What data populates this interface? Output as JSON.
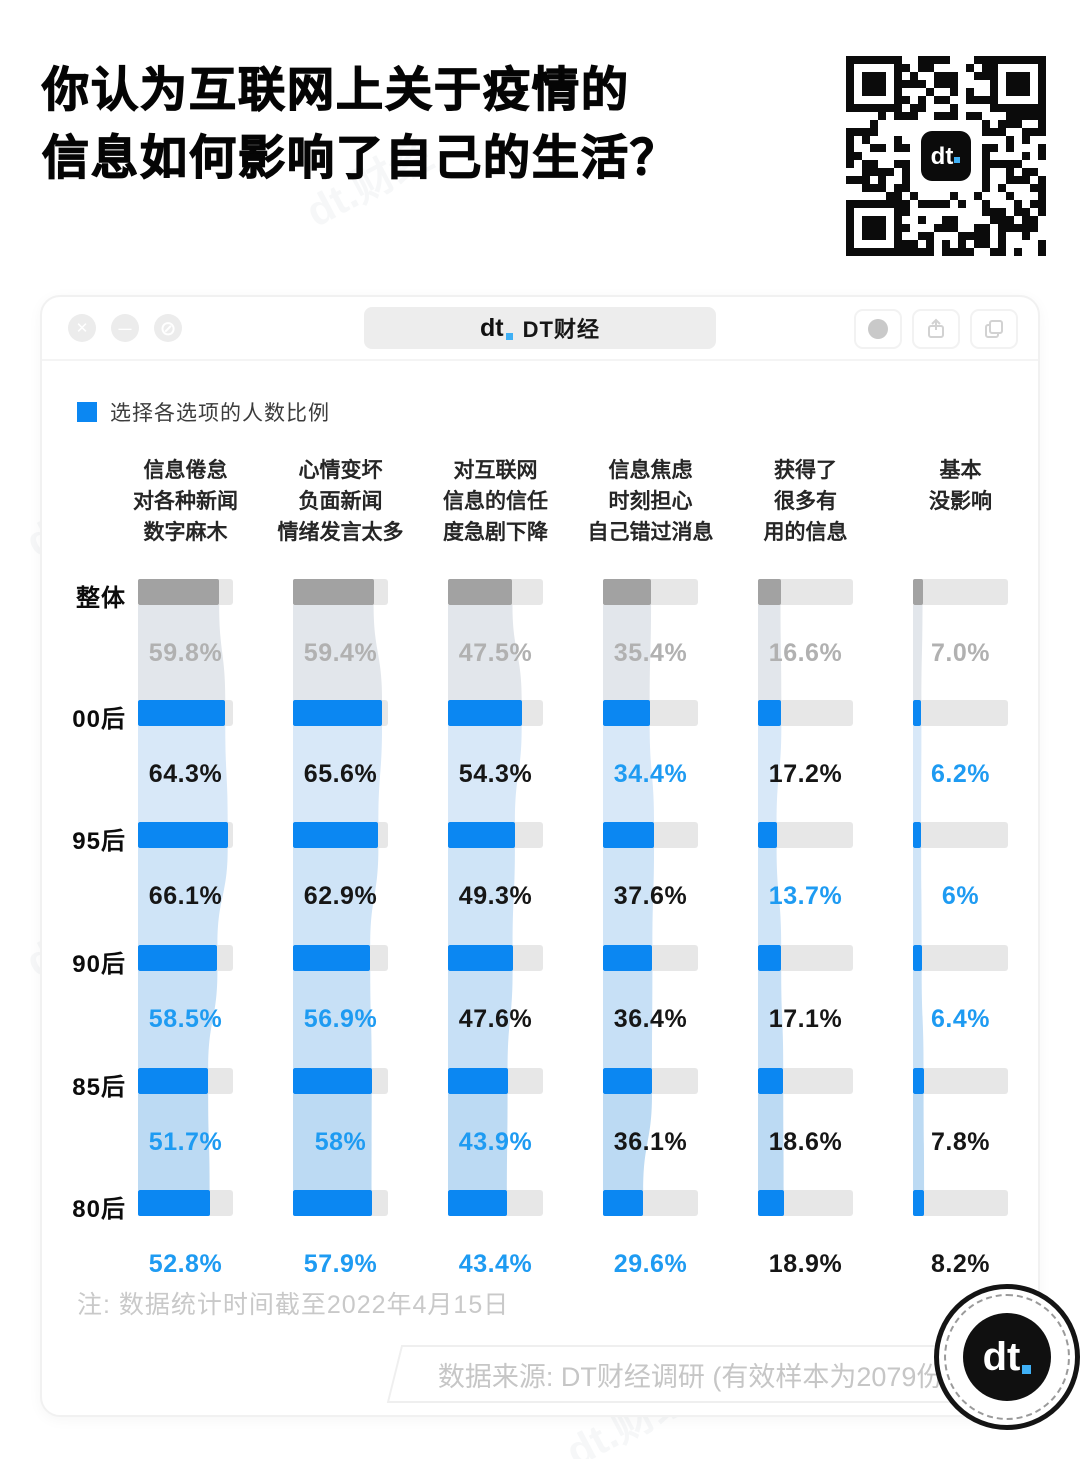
{
  "title": {
    "line1": "你认为互联网上关于疫情的",
    "line2": "信息如何影响了自己的生活？"
  },
  "watermark_text": "dt.财经",
  "qr": {
    "center_logo": "dt"
  },
  "window": {
    "logo_text": "dt",
    "title": "DT财经",
    "controls_left": [
      "close",
      "minimize",
      "block"
    ],
    "controls_right": [
      "record",
      "share",
      "copy"
    ]
  },
  "legend": {
    "label": "选择各选项的人数比例"
  },
  "chart_data": {
    "type": "bar",
    "orientation": "horizontal",
    "unit": "%",
    "axis_max_hint": 70,
    "grid": false,
    "row_labels": [
      "整体",
      "00后",
      "95后",
      "90后",
      "85后",
      "80后"
    ],
    "columns": [
      {
        "header": [
          "信息倦怠",
          "对各种新闻",
          "数字麻木"
        ],
        "values": [
          59.8,
          64.3,
          66.1,
          58.5,
          51.7,
          52.8
        ],
        "labels": [
          "59.8%",
          "64.3%",
          "66.1%",
          "58.5%",
          "51.7%",
          "52.8%"
        ],
        "blue_label": [
          false,
          false,
          false,
          true,
          true,
          true
        ]
      },
      {
        "header": [
          "心情变坏",
          "负面新闻",
          "情绪发言太多"
        ],
        "values": [
          59.4,
          65.6,
          62.9,
          56.9,
          58,
          57.9
        ],
        "labels": [
          "59.4%",
          "65.6%",
          "62.9%",
          "56.9%",
          "58%",
          "57.9%"
        ],
        "blue_label": [
          false,
          false,
          false,
          true,
          true,
          true
        ]
      },
      {
        "header": [
          "对互联网",
          "信息的信任",
          "度急剧下降"
        ],
        "values": [
          47.5,
          54.3,
          49.3,
          47.6,
          43.9,
          43.4
        ],
        "labels": [
          "47.5%",
          "54.3%",
          "49.3%",
          "47.6%",
          "43.9%",
          "43.4%"
        ],
        "blue_label": [
          false,
          false,
          false,
          false,
          true,
          true
        ]
      },
      {
        "header": [
          "信息焦虑",
          "时刻担心",
          "自己错过消息"
        ],
        "values": [
          35.4,
          34.4,
          37.6,
          36.4,
          36.1,
          29.6
        ],
        "labels": [
          "35.4%",
          "34.4%",
          "37.6%",
          "36.4%",
          "36.1%",
          "29.6%"
        ],
        "blue_label": [
          false,
          true,
          false,
          false,
          false,
          true
        ]
      },
      {
        "header": [
          "获得了",
          "很多有",
          "用的信息"
        ],
        "values": [
          16.6,
          17.2,
          13.7,
          17.1,
          18.6,
          18.9
        ],
        "labels": [
          "16.6%",
          "17.2%",
          "13.7%",
          "17.1%",
          "18.6%",
          "18.9%"
        ],
        "blue_label": [
          false,
          false,
          true,
          false,
          false,
          false
        ]
      },
      {
        "header": [
          "基本",
          "没影响"
        ],
        "values": [
          7.0,
          6.2,
          6,
          6.4,
          7.8,
          8.2
        ],
        "labels": [
          "7.0%",
          "6.2%",
          "6%",
          "6.4%",
          "7.8%",
          "8.2%"
        ],
        "blue_label": [
          false,
          true,
          true,
          true,
          false,
          false
        ]
      }
    ],
    "colors": {
      "bar_blue": "#0b87f2",
      "bar_gray": "#a2a2a2",
      "track": "#e7e7e7",
      "label_blue": "#1e9bf2",
      "label_dark": "#161616",
      "label_gray": "#b1b1b1",
      "flows": [
        "#e2e6eb",
        "#d8e8f8",
        "#cfe4f7",
        "#c7e0f6",
        "#bcdaf3"
      ]
    }
  },
  "note": "注: 数据统计时间截至2022年4月15日",
  "source": "数据来源: DT财经调研 (有效样本为2079份)",
  "footer_logo": {
    "text": "dt"
  }
}
